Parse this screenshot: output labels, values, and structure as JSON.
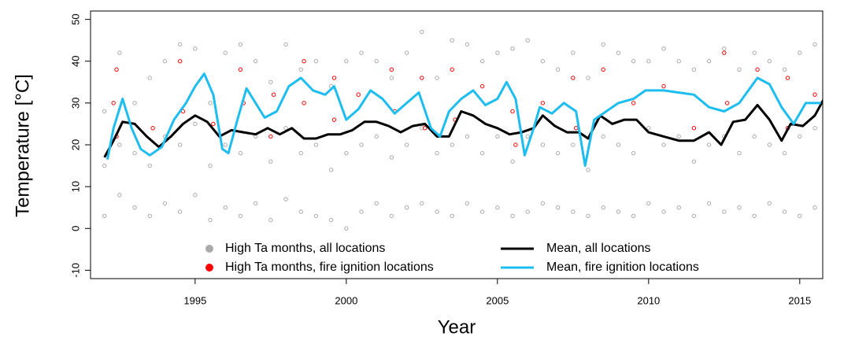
{
  "chart_data": {
    "type": "scatter",
    "x_label": "Year",
    "y_label": "Temperature [°C]",
    "xlim": [
      1991.54,
      2015.76
    ],
    "ylim": [
      -12,
      52
    ],
    "xticks": [
      1995,
      2000,
      2005,
      2010,
      2015
    ],
    "yticks": [
      -10,
      0,
      10,
      20,
      30,
      40,
      50
    ],
    "legend": "bottom",
    "series": [
      {
        "name": "High Ta months, all locations",
        "color": "#aaaaaa",
        "style": "points",
        "x": [
          1992,
          1992,
          1992,
          1992.5,
          1992.5,
          1992.5,
          1993,
          1993,
          1993,
          1993.5,
          1993.5,
          1993.5,
          1994,
          1994,
          1994,
          1994.5,
          1994.5,
          1994.5,
          1995,
          1995,
          1995,
          1995.5,
          1995.5,
          1995.5,
          1996,
          1996,
          1996,
          1996.5,
          1996.5,
          1996.5,
          1997,
          1997,
          1997,
          1997.5,
          1997.5,
          1997.5,
          1998,
          1998,
          1998,
          1998.5,
          1998.5,
          1998.5,
          1999,
          1999,
          1999,
          1999.5,
          1999.5,
          1999.5,
          2000,
          2000,
          2000,
          2000.5,
          2000.5,
          2000.5,
          2001,
          2001,
          2001,
          2001.5,
          2001.5,
          2001.5,
          2002,
          2002,
          2002,
          2002.5,
          2002.5,
          2002.5,
          2003,
          2003,
          2003,
          2003.5,
          2003.5,
          2003.5,
          2004,
          2004,
          2004,
          2004.5,
          2004.5,
          2004.5,
          2005,
          2005,
          2005,
          2005.5,
          2005.5,
          2005.5,
          2006,
          2006,
          2006,
          2006.5,
          2006.5,
          2006.5,
          2007,
          2007,
          2007,
          2007.5,
          2007.5,
          2007.5,
          2008,
          2008,
          2008,
          2008.5,
          2008.5,
          2008.5,
          2009,
          2009,
          2009,
          2009.5,
          2009.5,
          2009.5,
          2010,
          2010,
          2010,
          2010.5,
          2010.5,
          2010.5,
          2011,
          2011,
          2011,
          2011.5,
          2011.5,
          2011.5,
          2012,
          2012,
          2012,
          2012.5,
          2012.5,
          2012.5,
          2013,
          2013,
          2013,
          2013.5,
          2013.5,
          2013.5,
          2014,
          2014,
          2014,
          2014.5,
          2014.5,
          2014.5,
          2015,
          2015,
          2015,
          2015.5,
          2015.5,
          2015.5
        ],
        "y": [
          3,
          15,
          28,
          8,
          20,
          42,
          5,
          18,
          30,
          3,
          15,
          36,
          6,
          22,
          40,
          4,
          20,
          44,
          8,
          25,
          43,
          2,
          15,
          30,
          5,
          20,
          42,
          3,
          18,
          44,
          6,
          22,
          40,
          2,
          16,
          35,
          7,
          24,
          44,
          4,
          18,
          38,
          3,
          20,
          40,
          2,
          14,
          34,
          0,
          18,
          40,
          4,
          20,
          42,
          6,
          22,
          40,
          3,
          17,
          36,
          5,
          20,
          42,
          6,
          24,
          47,
          4,
          18,
          36,
          3,
          20,
          45,
          6,
          22,
          44,
          4,
          18,
          40,
          5,
          22,
          42,
          3,
          16,
          43,
          4,
          22,
          45,
          6,
          20,
          40,
          5,
          18,
          38,
          4,
          20,
          42,
          3,
          14,
          36,
          5,
          22,
          44,
          4,
          20,
          42,
          3,
          18,
          40,
          6,
          24,
          40,
          4,
          20,
          43,
          5,
          22,
          40,
          3,
          16,
          38,
          6,
          20,
          40,
          4,
          22,
          43,
          5,
          18,
          38,
          3,
          22,
          42,
          6,
          20,
          40,
          4,
          18,
          38,
          3,
          22,
          42,
          5,
          24,
          44
        ]
      },
      {
        "name": "High Ta months, fire ignition locations",
        "color": "#ff0000",
        "style": "points",
        "x": [
          1992.3,
          1992.4,
          1992.4,
          1993.6,
          1994.5,
          1994.6,
          1995.6,
          1996.5,
          1996.6,
          1997.5,
          1997.6,
          1998.6,
          1998.6,
          1999.6,
          1999.6,
          2000.4,
          2001.5,
          2001.6,
          2002.5,
          2002.6,
          2003.5,
          2003.6,
          2004.5,
          2005.5,
          2005.6,
          2006.5,
          2007.5,
          2007.6,
          2008.5,
          2009.5,
          2010.5,
          2011.5,
          2012.5,
          2012.6,
          2013.6,
          2014.6,
          2014.6,
          2015.5
        ],
        "y": [
          30,
          38,
          22,
          24,
          40,
          28,
          25,
          38,
          30,
          22,
          32,
          40,
          30,
          36,
          26,
          32,
          38,
          28,
          36,
          24,
          38,
          26,
          34,
          28,
          20,
          30,
          36,
          24,
          38,
          30,
          34,
          24,
          42,
          30,
          38,
          36,
          24,
          32
        ]
      },
      {
        "name": "Mean, all locations",
        "color": "#000000",
        "style": "line",
        "x": [
          1992.0,
          1992.3,
          1992.6,
          1993.0,
          1993.4,
          1993.8,
          1994.2,
          1994.6,
          1995.0,
          1995.4,
          1995.8,
          1996.2,
          1996.6,
          1997.0,
          1997.4,
          1997.8,
          1998.2,
          1998.6,
          1999.0,
          1999.4,
          1999.8,
          2000.2,
          2000.6,
          2001.0,
          2001.4,
          2001.8,
          2002.2,
          2002.6,
          2003.0,
          2003.4,
          2003.8,
          2004.2,
          2004.6,
          2005.0,
          2005.4,
          2005.8,
          2006.2,
          2006.5,
          2006.9,
          2007.3,
          2007.7,
          2008.0,
          2008.4,
          2008.8,
          2009.2,
          2009.6,
          2010.0,
          2010.5,
          2011.0,
          2011.5,
          2012.0,
          2012.4,
          2012.8,
          2013.2,
          2013.6,
          2014.0,
          2014.4,
          2014.7,
          2015.1,
          2015.5,
          2015.8
        ],
        "y": [
          17,
          21,
          25.5,
          25,
          22,
          19.5,
          22,
          25,
          27,
          25.5,
          22,
          23.5,
          23,
          22.5,
          24,
          22.5,
          24,
          21.5,
          21.5,
          22.5,
          22.5,
          23.5,
          25.5,
          25.5,
          24.5,
          23,
          24.5,
          25,
          22,
          22,
          28,
          27,
          25,
          24,
          22.5,
          23,
          24,
          27,
          24.5,
          23,
          23,
          21.5,
          27,
          25,
          26,
          26,
          23,
          22,
          21,
          21,
          23,
          20,
          25.5,
          26,
          29.5,
          26,
          21,
          25,
          24.5,
          27,
          31
        ]
      },
      {
        "name": "Mean, fire ignition locations",
        "color": "#1ebdf0",
        "style": "line",
        "x": [
          1992.1,
          1992.3,
          1992.6,
          1992.9,
          1993.2,
          1993.5,
          1993.9,
          1994.3,
          1994.7,
          1995.0,
          1995.3,
          1995.6,
          1995.9,
          1996.1,
          1996.4,
          1996.7,
          1997.0,
          1997.3,
          1997.7,
          1998.1,
          1998.5,
          1998.9,
          1999.3,
          1999.6,
          2000.0,
          2000.4,
          2000.8,
          2001.2,
          2001.6,
          2002.0,
          2002.4,
          2002.8,
          2003.1,
          2003.4,
          2003.8,
          2004.2,
          2004.6,
          2005.0,
          2005.3,
          2005.6,
          2005.9,
          2006.2,
          2006.4,
          2006.8,
          2007.2,
          2007.6,
          2007.9,
          2008.2,
          2008.6,
          2009.0,
          2009.5,
          2009.9,
          2010.5,
          2011.0,
          2011.5,
          2012.0,
          2012.5,
          2013.0,
          2013.6,
          2014.0,
          2014.4,
          2014.8,
          2015.2,
          2015.7
        ],
        "y": [
          16.5,
          24,
          31,
          24,
          19,
          17.5,
          19.5,
          26,
          30,
          34,
          37,
          32,
          19,
          18,
          26,
          33.5,
          30,
          26.5,
          28,
          34,
          36,
          33,
          32,
          34,
          26,
          28.5,
          33,
          31,
          27.5,
          30,
          32.5,
          24,
          22,
          28,
          31,
          33,
          29.5,
          31,
          35,
          31,
          17.5,
          24,
          29,
          27.5,
          30,
          28,
          15,
          26,
          28,
          30,
          31,
          33,
          33,
          32.5,
          32,
          29,
          28,
          30,
          36,
          34.5,
          29,
          25,
          30,
          30
        ]
      }
    ]
  }
}
